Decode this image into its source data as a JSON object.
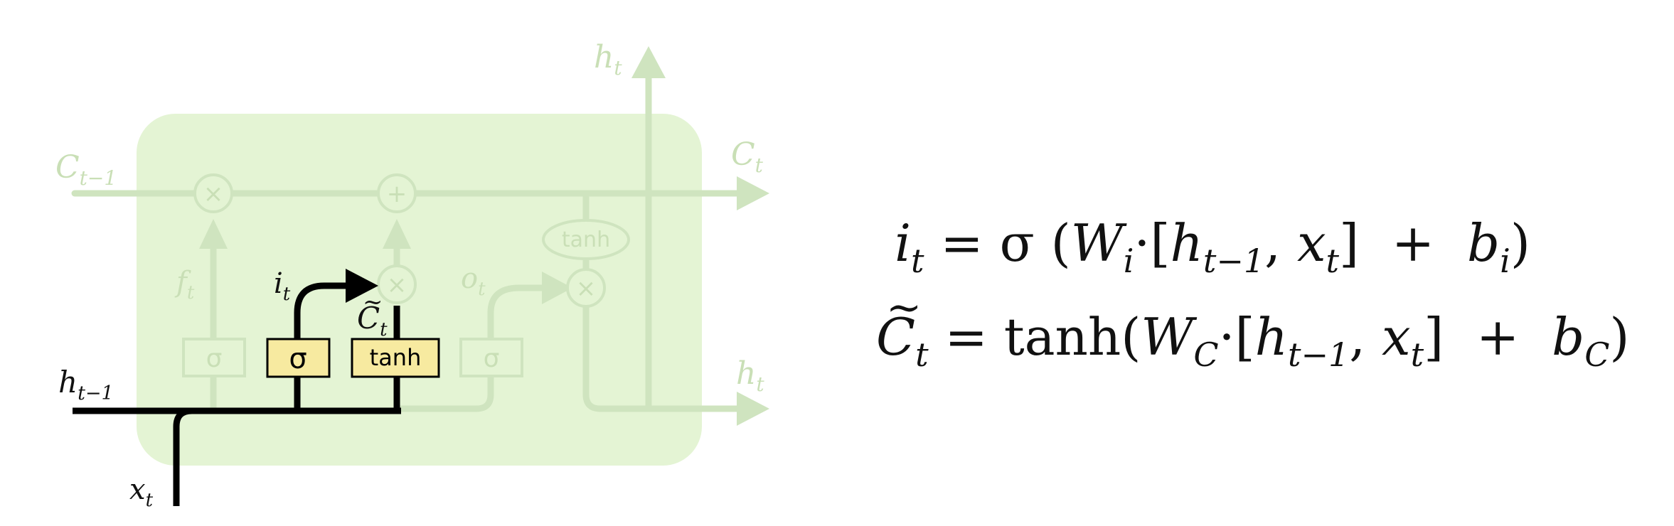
{
  "colors": {
    "cell_fill": "#e4f4d4",
    "faded": "#cfe4bf",
    "faded_text": "#c9dfb6",
    "highlight": "#000000",
    "gate_fill": "#f7eaa0",
    "gate_stroke": "#000000"
  },
  "diagram": {
    "labels": {
      "c_prev": "C",
      "c_prev_sub": "t−1",
      "c_next": "C",
      "c_next_sub": "t",
      "h_top": "h",
      "h_top_sub": "t",
      "h_right": "h",
      "h_right_sub": "t",
      "h_prev": "h",
      "h_prev_sub": "t−1",
      "x_in": "x",
      "x_in_sub": "t",
      "f_gate": "f",
      "f_gate_sub": "t",
      "i_gate": "i",
      "i_gate_sub": "t",
      "o_gate": "o",
      "o_gate_sub": "t",
      "c_tilde": "C",
      "c_tilde_mark": "~",
      "c_tilde_sub": "t"
    },
    "gates": {
      "forget": "σ",
      "input": "σ",
      "candidate": "tanh",
      "output": "σ",
      "output_tanh": "tanh"
    },
    "pointwise": {
      "mult": "×",
      "add": "+"
    }
  },
  "equations": {
    "eq1": {
      "lhs": "i",
      "lhs_sub": "t",
      "rhs_prefix": " = σ (",
      "w": "W",
      "w_sub": "i",
      "dot_bracket": "·[",
      "h": "h",
      "h_sub": "t−1",
      "comma": ", ",
      "x": "x",
      "x_sub": "t",
      "plus": "]  +  ",
      "b": "b",
      "b_sub": "i",
      "close": ")"
    },
    "eq2": {
      "lhs": "C",
      "lhs_tilde": "~",
      "lhs_sub": "t",
      "eq_tanh": " = tanh(",
      "w": "W",
      "w_sub": "C",
      "dot_bracket": "·[",
      "h": "h",
      "h_sub": "t−1",
      "comma": ", ",
      "x": "x",
      "x_sub": "t",
      "plus": "]  +  ",
      "b": "b",
      "b_sub": "C",
      "close": ")"
    }
  }
}
